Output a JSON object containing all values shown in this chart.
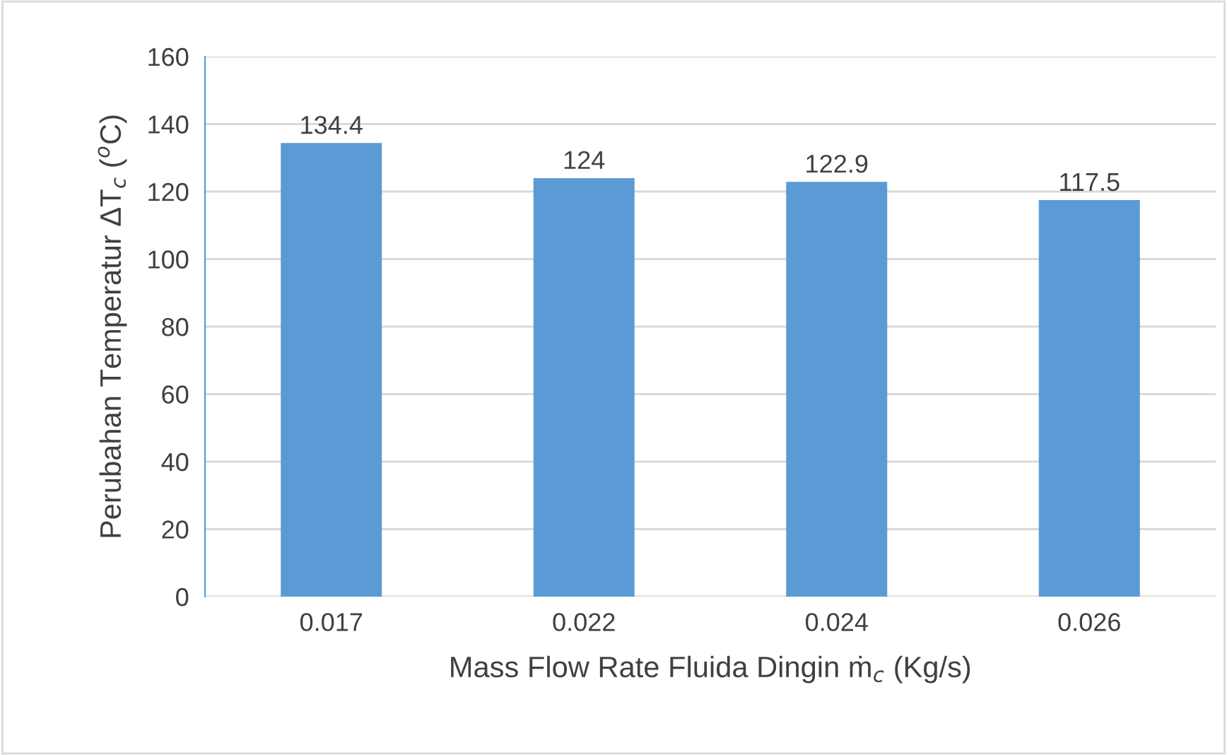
{
  "chart_data": {
    "type": "bar",
    "xlabel": "Mass Flow Rate Fluida Dingin ṁ$_{c}$ (Kg/s)",
    "ylabel": "Perubahan Temperatur ΔT$_{c}$ ($^{o}$C)",
    "categories": [
      "0.017",
      "0.022",
      "0.024",
      "0.026"
    ],
    "values": [
      134.4,
      124,
      122.9,
      117.5
    ],
    "color": "#5b9bd5",
    "ylim": [
      0,
      160
    ],
    "yticks": [
      0,
      20,
      40,
      60,
      80,
      100,
      120,
      140,
      160
    ],
    "grid": "y",
    "data_labels": true
  }
}
